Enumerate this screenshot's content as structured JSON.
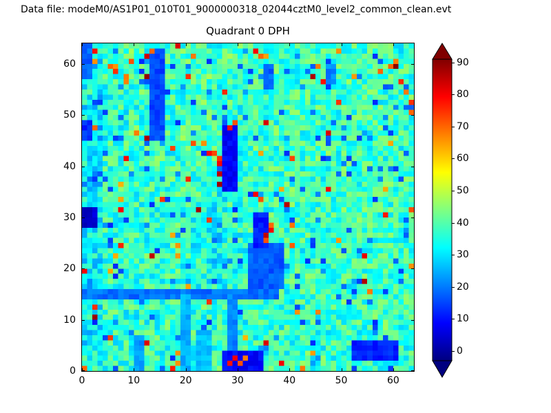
{
  "header": {
    "datafile_label": "Data file: modeM0/AS1P01_010T01_9000000318_02044cztM0_level2_common_clean.evt"
  },
  "chart_data": {
    "type": "heatmap",
    "title": "Quadrant 0 DPH",
    "xlabel": "",
    "ylabel": "",
    "x_range": [
      0,
      64
    ],
    "y_range": [
      0,
      64
    ],
    "x_ticks": [
      0,
      10,
      20,
      30,
      40,
      50,
      60
    ],
    "y_ticks": [
      0,
      10,
      20,
      30,
      40,
      50,
      60
    ],
    "grid_size": 64,
    "colormap": "jet",
    "color_scale": {
      "vmin": -3,
      "vmax": 91,
      "extend": "both"
    },
    "colorbar_ticks": [
      0,
      10,
      20,
      30,
      40,
      50,
      60,
      70,
      80,
      90
    ],
    "legend_position": "right-colorbar",
    "grid_lines": false,
    "base_grid": {
      "rows": 16,
      "cols": 16,
      "order": "top-to-bottom",
      "values": [
        [
          33,
          37,
          39,
          36,
          38,
          40,
          37,
          39,
          38,
          37,
          39,
          38,
          37,
          38,
          39,
          36
        ],
        [
          31,
          38,
          37,
          35,
          39,
          38,
          40,
          37,
          38,
          39,
          37,
          38,
          39,
          37,
          38,
          37
        ],
        [
          34,
          36,
          38,
          37,
          37,
          39,
          36,
          38,
          37,
          38,
          38,
          37,
          38,
          39,
          37,
          38
        ],
        [
          32,
          37,
          36,
          38,
          38,
          37,
          39,
          36,
          38,
          37,
          39,
          38,
          37,
          38,
          38,
          37
        ],
        [
          30,
          36,
          38,
          37,
          39,
          38,
          36,
          38,
          37,
          39,
          37,
          38,
          38,
          37,
          39,
          38
        ],
        [
          33,
          37,
          37,
          38,
          36,
          38,
          38,
          37,
          39,
          37,
          38,
          39,
          37,
          38,
          37,
          37
        ],
        [
          28,
          36,
          38,
          36,
          38,
          37,
          38,
          38,
          36,
          38,
          37,
          37,
          39,
          38,
          38,
          38
        ],
        [
          32,
          37,
          36,
          38,
          37,
          38,
          35,
          37,
          38,
          37,
          39,
          38,
          37,
          37,
          38,
          37
        ],
        [
          31,
          36,
          37,
          37,
          38,
          36,
          34,
          36,
          37,
          38,
          37,
          38,
          38,
          39,
          37,
          38
        ],
        [
          33,
          37,
          38,
          36,
          37,
          35,
          33,
          35,
          38,
          37,
          38,
          37,
          37,
          38,
          38,
          37
        ],
        [
          32,
          36,
          36,
          38,
          36,
          37,
          32,
          34,
          37,
          38,
          36,
          38,
          38,
          37,
          37,
          38
        ],
        [
          30,
          37,
          37,
          36,
          38,
          36,
          34,
          36,
          36,
          37,
          38,
          37,
          37,
          38,
          38,
          37
        ],
        [
          31,
          36,
          38,
          37,
          37,
          38,
          36,
          35,
          37,
          36,
          37,
          38,
          38,
          37,
          37,
          38
        ],
        [
          33,
          37,
          36,
          36,
          38,
          37,
          37,
          36,
          38,
          37,
          36,
          37,
          37,
          38,
          38,
          37
        ],
        [
          32,
          36,
          37,
          38,
          36,
          38,
          36,
          37,
          37,
          38,
          37,
          36,
          38,
          37,
          37,
          36
        ],
        [
          34,
          37,
          36,
          37,
          37,
          36,
          38,
          36,
          36,
          37,
          38,
          37,
          37,
          38,
          36,
          37
        ]
      ]
    },
    "noise": {
      "seed": 1234567,
      "amplitude": 9,
      "low_speckle_fraction": 0.05,
      "low_speckle_value": 12,
      "high_speckle_fraction": 0.015,
      "high_speckle_value": 62
    },
    "cold_regions": [
      {
        "x": 13,
        "y": 45,
        "w": 3,
        "h": 18,
        "v": 12
      },
      {
        "x": 27,
        "y": 35,
        "w": 3,
        "h": 13,
        "v": 5
      },
      {
        "x": 0,
        "y": 28,
        "w": 3,
        "h": 4,
        "v": 1
      },
      {
        "x": 0,
        "y": 14,
        "w": 38,
        "h": 2,
        "v": 16
      },
      {
        "x": 32,
        "y": 16,
        "w": 7,
        "h": 9,
        "v": 14
      },
      {
        "x": 33,
        "y": 24,
        "w": 3,
        "h": 7,
        "v": 8
      },
      {
        "x": 27,
        "y": 0,
        "w": 8,
        "h": 4,
        "v": 6
      },
      {
        "x": 52,
        "y": 2,
        "w": 9,
        "h": 4,
        "v": 9
      },
      {
        "x": 19,
        "y": 0,
        "w": 2,
        "h": 15,
        "v": 22
      },
      {
        "x": 28,
        "y": 4,
        "w": 2,
        "h": 11,
        "v": 18
      },
      {
        "x": 35,
        "y": 55,
        "w": 2,
        "h": 5,
        "v": 15
      },
      {
        "x": 47,
        "y": 56,
        "w": 2,
        "h": 4,
        "v": 18
      },
      {
        "x": 0,
        "y": 45,
        "w": 2,
        "h": 4,
        "v": 10
      },
      {
        "x": 10,
        "y": 0,
        "w": 2,
        "h": 7,
        "v": 20
      },
      {
        "x": 22,
        "y": 0,
        "w": 3,
        "h": 8,
        "v": 24
      },
      {
        "x": 0,
        "y": 57,
        "w": 2,
        "h": 7,
        "v": 15
      }
    ],
    "hot_pixels": [
      [
        26,
        36,
        88
      ],
      [
        26,
        38,
        85
      ],
      [
        26,
        40,
        80
      ],
      [
        26,
        41,
        75
      ],
      [
        28,
        47,
        78
      ],
      [
        29,
        48,
        72
      ],
      [
        35,
        26,
        85
      ],
      [
        36,
        27,
        80
      ],
      [
        35,
        25,
        72
      ],
      [
        36,
        28,
        70
      ],
      [
        33,
        34,
        80
      ],
      [
        34,
        33,
        72
      ],
      [
        28,
        1,
        78
      ],
      [
        29,
        2,
        80
      ],
      [
        30,
        1,
        72
      ],
      [
        31,
        2,
        68
      ],
      [
        5,
        59,
        70
      ],
      [
        6,
        58,
        75
      ],
      [
        8,
        57,
        68
      ],
      [
        9,
        60,
        72
      ],
      [
        13,
        62,
        70
      ],
      [
        20,
        57,
        75
      ],
      [
        21,
        61,
        68
      ],
      [
        2,
        60,
        66
      ],
      [
        34,
        61,
        70
      ],
      [
        45,
        59,
        68
      ],
      [
        52,
        57,
        65
      ],
      [
        57,
        58,
        70
      ],
      [
        60,
        60,
        68
      ],
      [
        49,
        62,
        66
      ],
      [
        63,
        52,
        75
      ],
      [
        63,
        50,
        70
      ],
      [
        63,
        31,
        72
      ],
      [
        62,
        54,
        68
      ],
      [
        63,
        20,
        66
      ],
      [
        0,
        0,
        70
      ],
      [
        10,
        46,
        68
      ],
      [
        2,
        47,
        70
      ],
      [
        49,
        25,
        65
      ],
      [
        55,
        15,
        68
      ],
      [
        44,
        3,
        65
      ],
      [
        18,
        22,
        65
      ],
      [
        7,
        33,
        64
      ],
      [
        59,
        44,
        64
      ],
      [
        23,
        44,
        66
      ],
      [
        41,
        11,
        66
      ]
    ]
  }
}
